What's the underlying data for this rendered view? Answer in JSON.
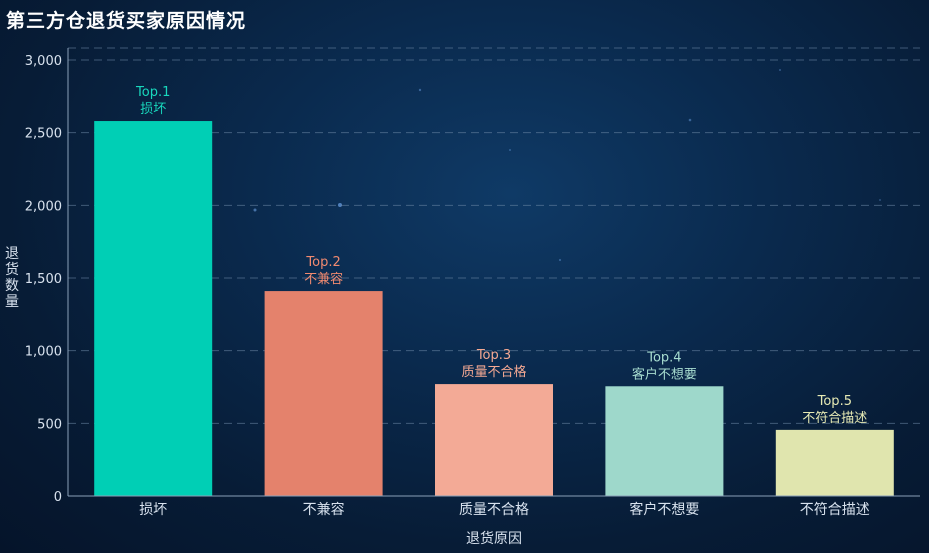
{
  "chart_data": {
    "type": "bar",
    "title": "第三方仓退货买家原因情况",
    "xlabel": "退货原因",
    "ylabel": "退货数量",
    "categories": [
      "损坏",
      "不兼容",
      "质量不合格",
      "客户不想要",
      "不符合描述"
    ],
    "values": [
      2580,
      1410,
      770,
      755,
      455
    ],
    "ylim": [
      0,
      3000
    ],
    "yticks": [
      0,
      500,
      1000,
      1500,
      2000,
      2500,
      3000
    ],
    "ytick_labels": [
      "0",
      "500",
      "1,000",
      "1,500",
      "2,000",
      "2,500",
      "3,000"
    ],
    "bar_labels": [
      {
        "rank": "Top.1",
        "name": "损坏"
      },
      {
        "rank": "Top.2",
        "name": "不兼容"
      },
      {
        "rank": "Top.3",
        "name": "质量不合格"
      },
      {
        "rank": "Top.4",
        "name": "客户不想要"
      },
      {
        "rank": "Top.5",
        "name": "不符合描述"
      }
    ],
    "colors": [
      "#00cfb5",
      "#e4826c",
      "#f3aa96",
      "#9ed8cb",
      "#e0e5ae"
    ],
    "label_colors": [
      "#18d8bd",
      "#f08a70",
      "#f5a993",
      "#a8ddd0",
      "#e6eab4"
    ],
    "grid": true,
    "legend": "none"
  }
}
